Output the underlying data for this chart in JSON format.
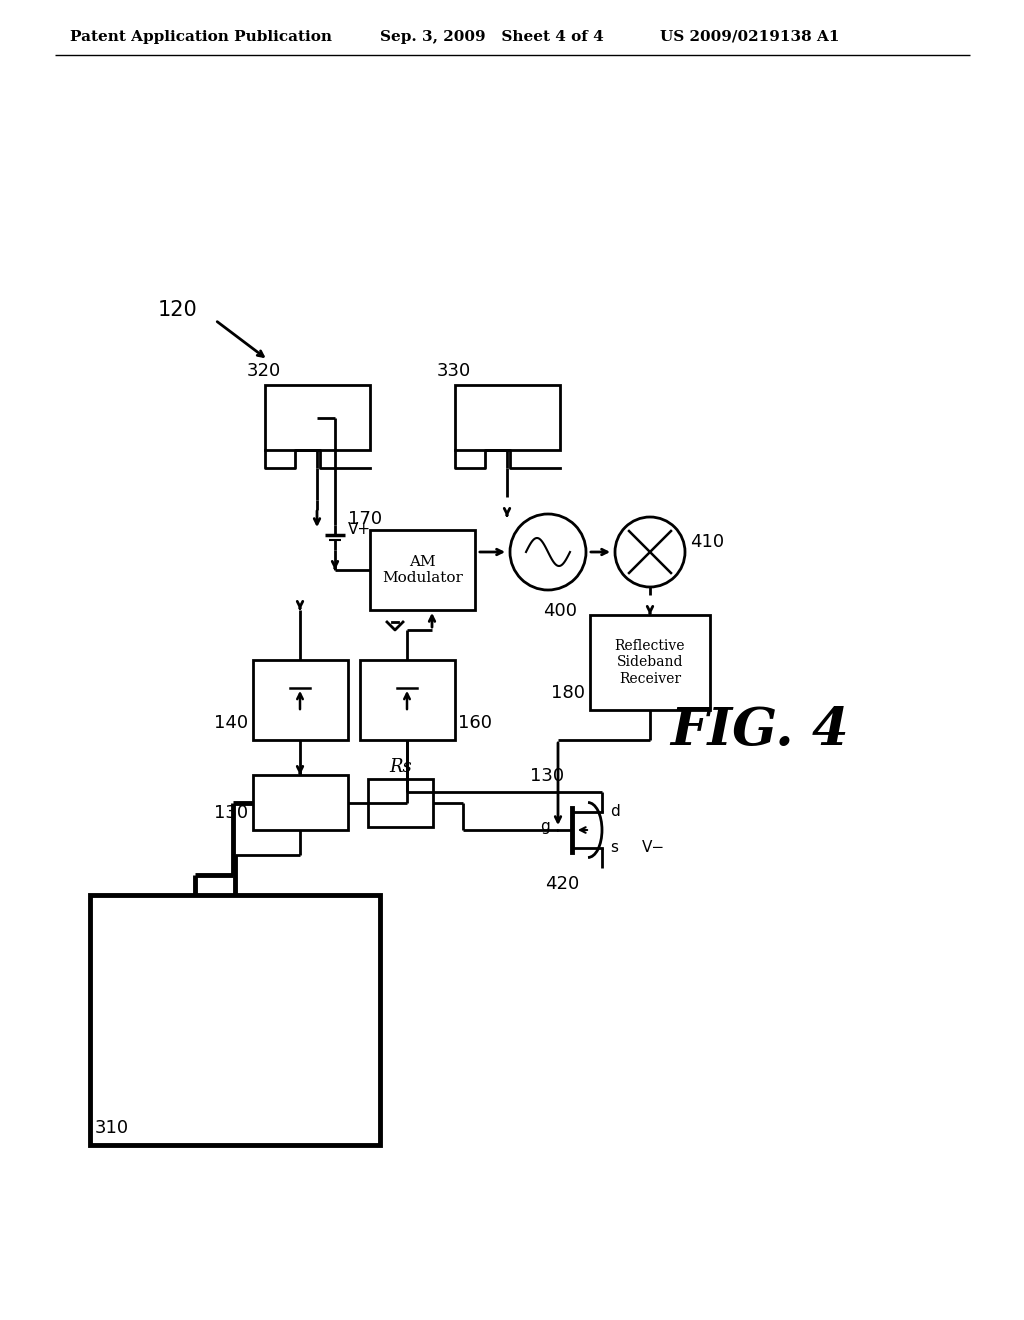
{
  "header_left": "Patent Application Publication",
  "header_mid": "Sep. 3, 2009   Sheet 4 of 4",
  "header_right": "US 2009/0219138 A1",
  "fig_label": "FIG. 4",
  "background": "#ffffff",
  "line_color": "#000000",
  "label_120": "120",
  "label_310": "310",
  "label_320": "320",
  "label_330": "330",
  "label_130a": "130",
  "label_130b": "130",
  "label_140": "140",
  "label_160": "160",
  "label_170": "170",
  "label_180": "180",
  "label_400": "400",
  "label_410": "410",
  "label_420": "420",
  "label_Rs": "Rs",
  "label_Vplus": "V+",
  "label_Vminus": "V−",
  "label_g": "g",
  "label_d": "d",
  "label_s": "s",
  "text_am_mod": "AM\nModulator",
  "text_refl": "Reflective\nSideband\nReceiver"
}
